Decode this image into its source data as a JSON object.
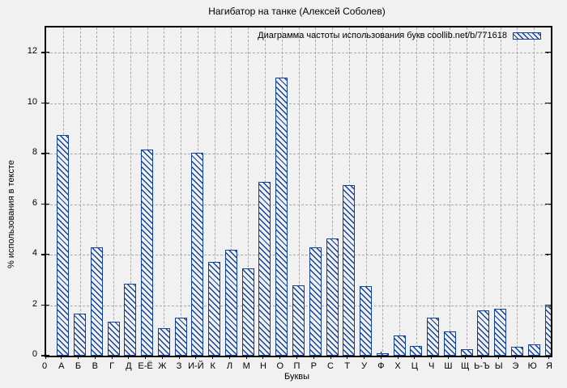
{
  "title": "Нагибатор на танке (Алексей Соболев)",
  "colors": {
    "bar": "#1040a0",
    "background": "#f1f1f1",
    "grid": "#a9a9a9",
    "border": "#000000"
  },
  "chart_data": {
    "type": "bar",
    "title": "Нагибатор на танке (Алексей Соболев)",
    "legend": "Диаграмма частоты использования букв coollib.net/b/771618",
    "legend_position": "top-right-inside",
    "xlabel": "Буквы",
    "ylabel": "% использования в тексте",
    "origin_label": "0",
    "ylim": [
      0,
      13
    ],
    "yticks": [
      0,
      2,
      4,
      6,
      8,
      10,
      12
    ],
    "grid": true,
    "bar_style": "blue-diagonal-hatch-outline",
    "categories": [
      "А",
      "Б",
      "В",
      "Г",
      "Д",
      "Е-Ё",
      "Ж",
      "З",
      "И-Й",
      "К",
      "Л",
      "М",
      "Н",
      "О",
      "П",
      "Р",
      "С",
      "Т",
      "У",
      "Ф",
      "Х",
      "Ц",
      "Ч",
      "Ш",
      "Щ",
      "Ь-Ъ",
      "Ы",
      "Э",
      "Ю",
      "Я"
    ],
    "values": [
      8.75,
      1.65,
      4.3,
      1.35,
      2.85,
      8.15,
      1.1,
      1.5,
      8.05,
      3.7,
      4.2,
      3.45,
      6.9,
      11.0,
      2.8,
      4.3,
      4.65,
      6.75,
      2.75,
      0.1,
      0.8,
      0.4,
      1.5,
      0.95,
      0.25,
      1.8,
      1.85,
      0.35,
      0.45,
      1.95
    ]
  }
}
